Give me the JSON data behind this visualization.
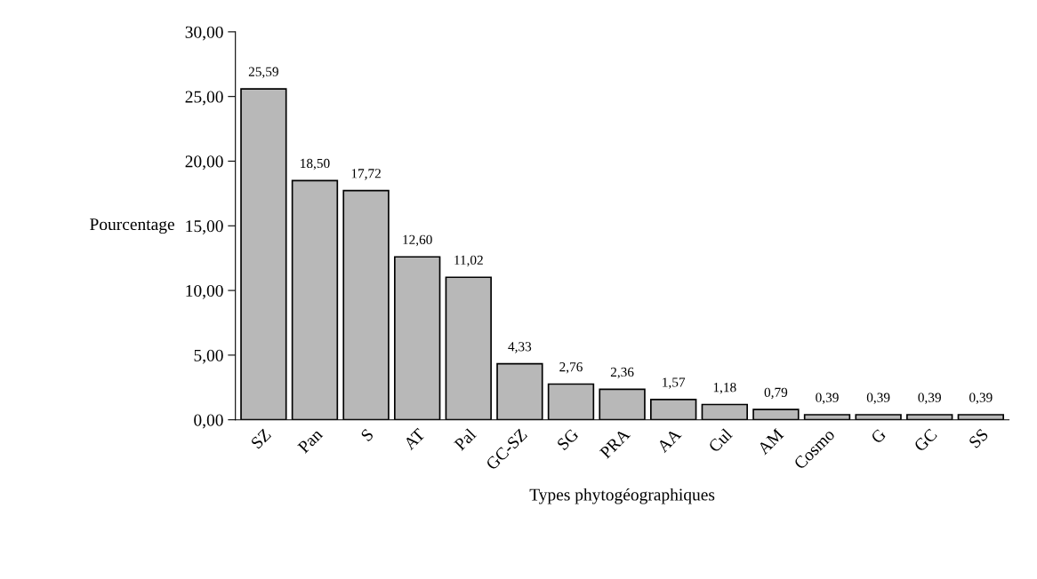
{
  "chart_data": {
    "type": "bar",
    "categories": [
      "SZ",
      "Pan",
      "S",
      "AT",
      "Pal",
      "GC-SZ",
      "SG",
      "PRA",
      "AA",
      "Cul",
      "AM",
      "Cosmo",
      "G",
      "GC",
      "SS"
    ],
    "values": [
      25.59,
      18.5,
      17.72,
      12.6,
      11.02,
      4.33,
      2.76,
      2.36,
      1.57,
      1.18,
      0.79,
      0.39,
      0.39,
      0.39,
      0.39
    ],
    "value_labels": [
      "25,59",
      "18,50",
      "17,72",
      "12,60",
      "11,02",
      "4,33",
      "2,76",
      "2,36",
      "1,57",
      "1,18",
      "0,79",
      "0,39",
      "0,39",
      "0,39",
      "0,39"
    ],
    "color": "#b8b8b8",
    "xlabel": "Types phytogéographiques",
    "ylabel": "Pourcentage",
    "ylim": [
      0,
      30
    ],
    "yticks": [
      {
        "value": 0,
        "label": "0,00"
      },
      {
        "value": 5,
        "label": "5,00"
      },
      {
        "value": 10,
        "label": "10,00"
      },
      {
        "value": 15,
        "label": "15,00"
      },
      {
        "value": 20,
        "label": "20,00"
      },
      {
        "value": 25,
        "label": "25,00"
      },
      {
        "value": 30,
        "label": "30,00"
      }
    ],
    "grid": false,
    "legend": false
  }
}
